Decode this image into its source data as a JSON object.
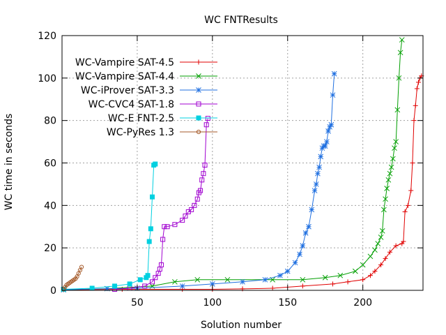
{
  "chart_data": {
    "type": "line",
    "title": "WC FNTResults",
    "xlabel": "Solution number",
    "ylabel": "WC time in seconds",
    "xlim": [
      0,
      240
    ],
    "ylim": [
      0,
      120
    ],
    "xticks": [
      50,
      100,
      150,
      200
    ],
    "yticks": [
      0,
      20,
      40,
      60,
      80,
      100,
      120
    ],
    "grid": true,
    "legend_position": "top-left",
    "series": [
      {
        "name": "WC-Vampire SAT-4.5",
        "color": "#e00000",
        "marker": "plus",
        "points": [
          [
            1,
            0.3
          ],
          [
            40,
            0.5
          ],
          [
            80,
            0.5
          ],
          [
            100,
            0.5
          ],
          [
            120,
            0.7
          ],
          [
            140,
            1
          ],
          [
            160,
            2
          ],
          [
            180,
            3
          ],
          [
            190,
            4
          ],
          [
            200,
            5
          ],
          [
            205,
            7
          ],
          [
            208,
            9
          ],
          [
            212,
            12
          ],
          [
            215,
            15
          ],
          [
            218,
            18
          ],
          [
            222,
            21
          ],
          [
            226,
            22
          ],
          [
            227,
            23
          ],
          [
            228,
            37
          ],
          [
            230,
            40
          ],
          [
            232,
            47
          ],
          [
            233,
            60
          ],
          [
            234,
            80
          ],
          [
            235,
            87
          ],
          [
            236,
            95
          ],
          [
            237,
            98
          ],
          [
            238,
            100
          ],
          [
            239,
            101
          ]
        ]
      },
      {
        "name": "WC-Vampire SAT-4.4",
        "color": "#009e00",
        "marker": "x",
        "points": [
          [
            1,
            0.3
          ],
          [
            30,
            0.8
          ],
          [
            60,
            2
          ],
          [
            75,
            4
          ],
          [
            90,
            5
          ],
          [
            110,
            5
          ],
          [
            140,
            5
          ],
          [
            160,
            5
          ],
          [
            175,
            6
          ],
          [
            185,
            7
          ],
          [
            195,
            9
          ],
          [
            200,
            12
          ],
          [
            205,
            16
          ],
          [
            208,
            19
          ],
          [
            210,
            22
          ],
          [
            212,
            25
          ],
          [
            213,
            28
          ],
          [
            214,
            38
          ],
          [
            215,
            43
          ],
          [
            216,
            48
          ],
          [
            217,
            52
          ],
          [
            218,
            55
          ],
          [
            219,
            58
          ],
          [
            220,
            62
          ],
          [
            221,
            67
          ],
          [
            222,
            70
          ],
          [
            223,
            85
          ],
          [
            224,
            100
          ],
          [
            225,
            112
          ],
          [
            226,
            118
          ]
        ]
      },
      {
        "name": "WC-iProver SAT-3.3",
        "color": "#1f6fe0",
        "marker": "star",
        "points": [
          [
            1,
            0.3
          ],
          [
            30,
            0.8
          ],
          [
            50,
            1
          ],
          [
            80,
            2
          ],
          [
            100,
            3
          ],
          [
            120,
            4
          ],
          [
            135,
            5
          ],
          [
            145,
            7
          ],
          [
            150,
            9
          ],
          [
            155,
            13
          ],
          [
            158,
            17
          ],
          [
            160,
            21
          ],
          [
            162,
            27
          ],
          [
            164,
            30
          ],
          [
            166,
            38
          ],
          [
            168,
            47
          ],
          [
            169,
            50
          ],
          [
            170,
            55
          ],
          [
            171,
            58
          ],
          [
            172,
            63
          ],
          [
            173,
            67
          ],
          [
            174,
            68
          ],
          [
            175,
            68
          ],
          [
            176,
            70
          ],
          [
            177,
            75
          ],
          [
            178,
            77
          ],
          [
            179,
            78
          ],
          [
            180,
            92
          ],
          [
            181,
            102
          ]
        ]
      },
      {
        "name": "WC-CVC4 SAT-1.8",
        "color": "#a000d0",
        "marker": "square",
        "points": [
          [
            35,
            0.5
          ],
          [
            45,
            1
          ],
          [
            55,
            2
          ],
          [
            60,
            4
          ],
          [
            62,
            6
          ],
          [
            64,
            8
          ],
          [
            65,
            10
          ],
          [
            66,
            12
          ],
          [
            67,
            24
          ],
          [
            68,
            30
          ],
          [
            70,
            30
          ],
          [
            75,
            31
          ],
          [
            80,
            33
          ],
          [
            82,
            35
          ],
          [
            84,
            37
          ],
          [
            86,
            38
          ],
          [
            88,
            40
          ],
          [
            90,
            43
          ],
          [
            91,
            46
          ],
          [
            92,
            47
          ],
          [
            93,
            52
          ],
          [
            94,
            55
          ],
          [
            95,
            59
          ],
          [
            96,
            78
          ],
          [
            97,
            81
          ]
        ]
      },
      {
        "name": "WC-E FNT-2.5",
        "color": "#00d0e0",
        "marker": "filled-square",
        "points": [
          [
            1,
            0.5
          ],
          [
            20,
            1
          ],
          [
            35,
            2
          ],
          [
            45,
            3
          ],
          [
            52,
            5
          ],
          [
            56,
            6
          ],
          [
            57,
            7
          ],
          [
            58,
            23
          ],
          [
            59,
            29
          ],
          [
            60,
            44
          ],
          [
            61,
            59
          ],
          [
            62,
            59.5
          ]
        ]
      },
      {
        "name": "WC-PyRes 1.3",
        "color": "#a55a2a",
        "marker": "circle",
        "points": [
          [
            1,
            0.5
          ],
          [
            2,
            1.5
          ],
          [
            3,
            2.5
          ],
          [
            4,
            3
          ],
          [
            5,
            3.5
          ],
          [
            6,
            4
          ],
          [
            7,
            4.5
          ],
          [
            8,
            5
          ],
          [
            9,
            5.5
          ],
          [
            10,
            6.5
          ],
          [
            11,
            8
          ],
          [
            12,
            9.5
          ],
          [
            13,
            11
          ]
        ]
      }
    ]
  }
}
